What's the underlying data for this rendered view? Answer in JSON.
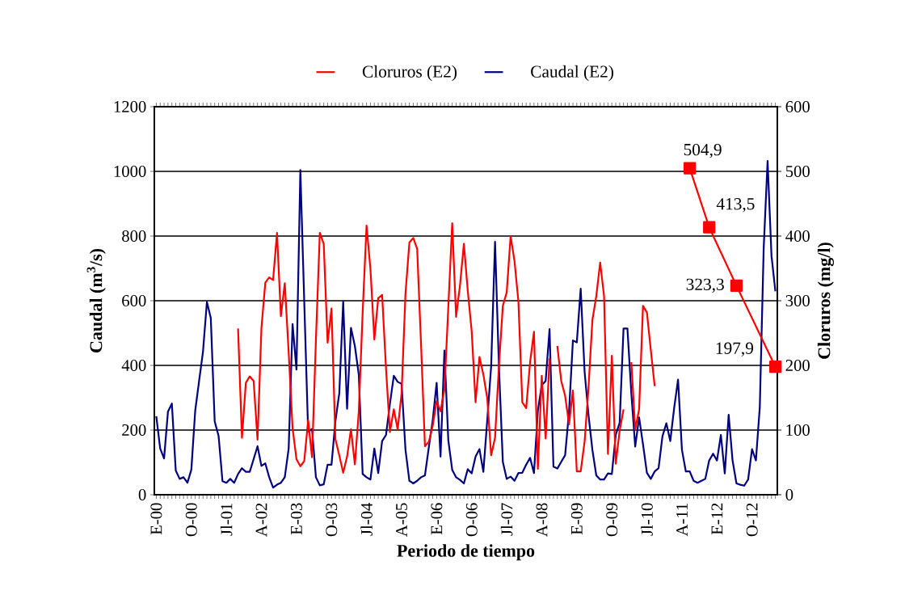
{
  "chart_data": {
    "type": "line",
    "xlabel": "Periodo de tiempo",
    "ylabel": "Caudal (m$^{3}$/s)",
    "y2label": "Cloruros (mg/l)",
    "categories": [
      "E-00",
      null,
      null,
      null,
      null,
      null,
      null,
      null,
      null,
      "O-00",
      null,
      null,
      null,
      null,
      null,
      null,
      null,
      null,
      "Jl-01",
      null,
      null,
      null,
      null,
      null,
      null,
      null,
      null,
      "A-02",
      null,
      null,
      null,
      null,
      null,
      null,
      null,
      null,
      "E-03",
      null,
      null,
      null,
      null,
      null,
      null,
      null,
      null,
      "O-03",
      null,
      null,
      null,
      null,
      null,
      null,
      null,
      null,
      "Jl-04",
      null,
      null,
      null,
      null,
      null,
      null,
      null,
      null,
      "A-05",
      null,
      null,
      null,
      null,
      null,
      null,
      null,
      null,
      "E-06",
      null,
      null,
      null,
      null,
      null,
      null,
      null,
      null,
      "O-06",
      null,
      null,
      null,
      null,
      null,
      null,
      null,
      null,
      "Jl-07",
      null,
      null,
      null,
      null,
      null,
      null,
      null,
      null,
      "A-08",
      null,
      null,
      null,
      null,
      null,
      null,
      null,
      null,
      "E-09",
      null,
      null,
      null,
      null,
      null,
      null,
      null,
      null,
      "O-09",
      null,
      null,
      null,
      null,
      null,
      null,
      null,
      null,
      "Jl-10",
      null,
      null,
      null,
      null,
      null,
      null,
      null,
      null,
      "A-11",
      null,
      null,
      null,
      null,
      null,
      null,
      null,
      null,
      "E-12",
      null,
      null,
      null,
      null,
      null,
      null,
      null,
      null,
      "O-12",
      null,
      null,
      null,
      null,
      null,
      null
    ],
    "series": [
      {
        "name": "Cloruros (E2)",
        "color": "#ff0000",
        "axis": "y2",
        "values": [
          null,
          null,
          null,
          null,
          null,
          null,
          null,
          null,
          null,
          null,
          null,
          null,
          null,
          null,
          null,
          null,
          null,
          null,
          null,
          null,
          null,
          257,
          88,
          173,
          183,
          176,
          85,
          257,
          328,
          336,
          332,
          405,
          276,
          327,
          220,
          103,
          55,
          44,
          52,
          115,
          58,
          240,
          405,
          388,
          235,
          288,
          86,
          61,
          34,
          59,
          101,
          47,
          128,
          282,
          416,
          349,
          240,
          304,
          309,
          195,
          97,
          132,
          101,
          157,
          311,
          390,
          397,
          380,
          232,
          75,
          82,
          107,
          145,
          129,
          163,
          290,
          420,
          275,
          324,
          388,
          315,
          253,
          143,
          213,
          186,
          149,
          61,
          88,
          199,
          292,
          313,
          400,
          361,
          299,
          143,
          134,
          205,
          252,
          40,
          184,
          87,
          211,
          null,
          230,
          176,
          153,
          109,
          161,
          36,
          36,
          82,
          165,
          270,
          307,
          359,
          307,
          63,
          215,
          48,
          99,
          132,
          null,
          205,
          101,
          132,
          292,
          282,
          224,
          168,
          null,
          null,
          null,
          null,
          null,
          null,
          null,
          null,
          null,
          null,
          null,
          null,
          null,
          null,
          null,
          null,
          null,
          null,
          null,
          null,
          null,
          null,
          null,
          null,
          null,
          null,
          null,
          null,
          null,
          null,
          null
        ]
      },
      {
        "name": "Caudal (E2)",
        "color": "#000080",
        "axis": "y",
        "values": [
          243,
          143,
          112,
          257,
          282,
          75,
          49,
          54,
          37,
          77,
          260,
          352,
          443,
          596,
          546,
          227,
          182,
          42,
          37,
          49,
          37,
          64,
          82,
          71,
          71,
          110,
          150,
          89,
          97,
          54,
          22,
          31,
          37,
          54,
          143,
          528,
          387,
          1004,
          597,
          195,
          203,
          54,
          29,
          32,
          93,
          93,
          227,
          314,
          597,
          266,
          516,
          460,
          372,
          64,
          54,
          47,
          143,
          67,
          166,
          185,
          281,
          368,
          349,
          343,
          139,
          43,
          35,
          43,
          54,
          60,
          147,
          231,
          346,
          118,
          446,
          168,
          77,
          54,
          46,
          35,
          79,
          66,
          118,
          141,
          71,
          231,
          397,
          782,
          397,
          102,
          49,
          56,
          43,
          67,
          68,
          93,
          114,
          67,
          260,
          339,
          352,
          512,
          87,
          81,
          102,
          122,
          256,
          477,
          471,
          637,
          381,
          247,
          139,
          60,
          47,
          47,
          66,
          64,
          185,
          222,
          514,
          514,
          314,
          149,
          239,
          156,
          68,
          49,
          72,
          82,
          181,
          221,
          166,
          268,
          356,
          139,
          72,
          72,
          43,
          37,
          43,
          49,
          106,
          127,
          106,
          185,
          66,
          247,
          106,
          35,
          31,
          28,
          47,
          141,
          106,
          272,
          764,
          1032,
          739,
          629
        ]
      },
      {
        "color": "#ff0000",
        "axis": "y2",
        "marker": "square",
        "values": [
          null,
          null,
          null,
          null,
          null,
          null,
          null,
          null,
          null,
          null,
          null,
          null,
          null,
          null,
          null,
          null,
          null,
          null,
          null,
          null,
          null,
          null,
          null,
          null,
          null,
          null,
          null,
          null,
          null,
          null,
          null,
          null,
          null,
          null,
          null,
          null,
          null,
          null,
          null,
          null,
          null,
          null,
          null,
          null,
          null,
          null,
          null,
          null,
          null,
          null,
          null,
          null,
          null,
          null,
          null,
          null,
          null,
          null,
          null,
          null,
          null,
          null,
          null,
          null,
          null,
          null,
          null,
          null,
          null,
          null,
          null,
          null,
          null,
          null,
          null,
          null,
          null,
          null,
          null,
          null,
          null,
          null,
          null,
          null,
          null,
          null,
          null,
          null,
          null,
          null,
          null,
          null,
          null,
          null,
          null,
          null,
          null,
          null,
          null,
          null,
          null,
          null,
          null,
          null,
          null,
          null,
          null,
          null,
          null,
          null,
          null,
          null,
          null,
          null,
          null,
          null,
          null,
          null,
          null,
          null,
          null,
          null,
          null,
          null,
          null,
          null,
          null,
          null,
          null,
          null,
          null,
          null,
          null,
          null,
          null,
          null,
          null,
          504.9,
          null,
          null,
          null,
          null,
          413.5,
          null,
          null,
          null,
          null,
          null,
          null,
          323.3,
          null,
          null,
          null,
          null,
          null,
          null,
          null,
          null,
          null,
          197.9
        ],
        "value_labels": [
          null,
          null,
          null,
          null,
          null,
          null,
          null,
          null,
          null,
          null,
          null,
          null,
          null,
          null,
          null,
          null,
          null,
          null,
          null,
          null,
          null,
          null,
          null,
          null,
          null,
          null,
          null,
          null,
          null,
          null,
          null,
          null,
          null,
          null,
          null,
          null,
          null,
          null,
          null,
          null,
          null,
          null,
          null,
          null,
          null,
          null,
          null,
          null,
          null,
          null,
          null,
          null,
          null,
          null,
          null,
          null,
          null,
          null,
          null,
          null,
          null,
          null,
          null,
          null,
          null,
          null,
          null,
          null,
          null,
          null,
          null,
          null,
          null,
          null,
          null,
          null,
          null,
          null,
          null,
          null,
          null,
          null,
          null,
          null,
          null,
          null,
          null,
          null,
          null,
          null,
          null,
          null,
          null,
          null,
          null,
          null,
          null,
          null,
          null,
          null,
          null,
          null,
          null,
          null,
          null,
          null,
          null,
          null,
          null,
          null,
          null,
          null,
          null,
          null,
          null,
          null,
          null,
          null,
          null,
          null,
          null,
          null,
          null,
          null,
          null,
          null,
          null,
          null,
          null,
          null,
          null,
          null,
          null,
          null,
          null,
          null,
          null,
          "504,9",
          null,
          null,
          null,
          null,
          "413,5",
          null,
          null,
          null,
          null,
          null,
          null,
          "323,3",
          null,
          null,
          null,
          null,
          null,
          null,
          null,
          null,
          null,
          "197,9"
        ]
      }
    ],
    "ylim": [
      0,
      1200
    ],
    "yticks": [
      0,
      200,
      400,
      600,
      800,
      1000,
      1200
    ],
    "y2lim": [
      0,
      600
    ],
    "y2ticks": [
      0,
      100,
      200,
      300,
      400,
      500,
      600
    ],
    "grid": "y",
    "legend": "top"
  }
}
